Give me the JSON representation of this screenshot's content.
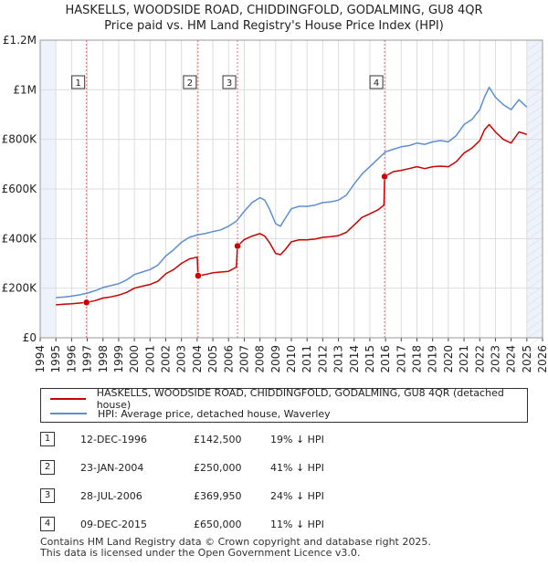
{
  "title": {
    "line1": "HASKELLS, WOODSIDE ROAD, CHIDDINGFOLD, GODALMING, GU8 4QR",
    "line2": "Price paid vs. HM Land Registry's House Price Index (HPI)"
  },
  "legend": {
    "property": "HASKELLS, WOODSIDE ROAD, CHIDDINGFOLD, GODALMING, GU8 4QR (detached house)",
    "hpi": "HPI: Average price, detached house, Waverley"
  },
  "colors": {
    "property": "#cc0000",
    "hpi": "#5b8fd4",
    "shade": "#eef2fa",
    "marker_line": "#e07070"
  },
  "sales": [
    {
      "num": "1",
      "date": "12-DEC-1996",
      "price": "£142,500",
      "pct": "19% ↓ HPI",
      "year": 1996.95,
      "value": 142500
    },
    {
      "num": "2",
      "date": "23-JAN-2004",
      "price": "£250,000",
      "pct": "41% ↓ HPI",
      "year": 2004.06,
      "value": 250000
    },
    {
      "num": "3",
      "date": "28-JUL-2006",
      "price": "£369,950",
      "pct": "24% ↓ HPI",
      "year": 2006.57,
      "value": 369950
    },
    {
      "num": "4",
      "date": "09-DEC-2015",
      "price": "£650,000",
      "pct": "11% ↓ HPI",
      "year": 2015.94,
      "value": 650000
    }
  ],
  "footer": {
    "line1": "Contains HM Land Registry data © Crown copyright and database right 2025.",
    "line2": "This data is licensed under the Open Government Licence v3.0."
  },
  "chart_data": {
    "type": "line",
    "title": "Price paid vs. HM Land Registry's House Price Index (HPI)",
    "xlim": [
      1994,
      2026
    ],
    "ylim": [
      0,
      1200000
    ],
    "x_ticks": [
      "1994",
      "1995",
      "1996",
      "1997",
      "1998",
      "1999",
      "2000",
      "2001",
      "2002",
      "2003",
      "2004",
      "2005",
      "2006",
      "2007",
      "2008",
      "2009",
      "2010",
      "2011",
      "2012",
      "2013",
      "2014",
      "2015",
      "2016",
      "2017",
      "2018",
      "2019",
      "2020",
      "2021",
      "2022",
      "2023",
      "2024",
      "2025",
      "2026"
    ],
    "y_ticks": [
      {
        "value": 0,
        "label": "£0"
      },
      {
        "value": 200000,
        "label": "£200K"
      },
      {
        "value": 400000,
        "label": "£400K"
      },
      {
        "value": 600000,
        "label": "£600K"
      },
      {
        "value": 800000,
        "label": "£800K"
      },
      {
        "value": 1000000,
        "label": "£1M"
      },
      {
        "value": 1200000,
        "label": "£1.2M"
      }
    ],
    "shaded_x_ranges": [
      [
        1994,
        1995
      ],
      [
        2025,
        2026
      ]
    ],
    "series": [
      {
        "name": "HPI: Average price, detached house, Waverley",
        "x": [
          1995.0,
          1995.5,
          1996.0,
          1996.5,
          1997.0,
          1997.5,
          1998.0,
          1998.5,
          1999.0,
          1999.5,
          2000.0,
          2000.5,
          2001.0,
          2001.5,
          2002.0,
          2002.5,
          2003.0,
          2003.5,
          2004.0,
          2004.5,
          2005.0,
          2005.5,
          2006.0,
          2006.5,
          2007.0,
          2007.5,
          2008.0,
          2008.3,
          2008.6,
          2009.0,
          2009.3,
          2009.6,
          2010.0,
          2010.5,
          2011.0,
          2011.5,
          2012.0,
          2012.5,
          2013.0,
          2013.5,
          2014.0,
          2014.5,
          2015.0,
          2015.5,
          2016.0,
          2016.5,
          2017.0,
          2017.5,
          2018.0,
          2018.5,
          2019.0,
          2019.5,
          2020.0,
          2020.5,
          2021.0,
          2021.5,
          2022.0,
          2022.3,
          2022.6,
          2023.0,
          2023.5,
          2024.0,
          2024.5,
          2025.0
        ],
        "y": [
          162000,
          164000,
          168000,
          173000,
          180000,
          190000,
          203000,
          210000,
          218000,
          233000,
          255000,
          265000,
          275000,
          293000,
          330000,
          355000,
          385000,
          405000,
          415000,
          420000,
          428000,
          435000,
          450000,
          470000,
          510000,
          545000,
          565000,
          555000,
          520000,
          460000,
          450000,
          480000,
          520000,
          530000,
          530000,
          535000,
          545000,
          548000,
          555000,
          575000,
          620000,
          660000,
          690000,
          720000,
          750000,
          760000,
          770000,
          775000,
          785000,
          780000,
          790000,
          795000,
          790000,
          815000,
          860000,
          880000,
          920000,
          970000,
          1010000,
          970000,
          940000,
          920000,
          960000,
          930000
        ]
      },
      {
        "name": "HASKELLS, WOODSIDE ROAD, CHIDDINGFOLD, GODALMING, GU8 4QR (detached house)",
        "x": [
          1995.0,
          1995.5,
          1996.0,
          1996.5,
          1996.95,
          1997.5,
          1998.0,
          1998.5,
          1999.0,
          1999.5,
          2000.0,
          2000.5,
          2001.0,
          2001.5,
          2002.0,
          2002.5,
          2003.0,
          2003.5,
          2004.0,
          2004.06,
          2004.5,
          2005.0,
          2005.5,
          2006.0,
          2006.5,
          2006.57,
          2007.0,
          2007.5,
          2008.0,
          2008.3,
          2008.6,
          2009.0,
          2009.3,
          2009.6,
          2010.0,
          2010.5,
          2011.0,
          2011.5,
          2012.0,
          2012.5,
          2013.0,
          2013.5,
          2014.0,
          2014.5,
          2015.0,
          2015.5,
          2015.9,
          2015.94,
          2016.5,
          2017.0,
          2017.5,
          2018.0,
          2018.5,
          2019.0,
          2019.5,
          2020.0,
          2020.5,
          2021.0,
          2021.5,
          2022.0,
          2022.3,
          2022.6,
          2023.0,
          2023.5,
          2024.0,
          2024.5,
          2025.0
        ],
        "y": [
          133000,
          135000,
          137000,
          140000,
          142500,
          150000,
          160000,
          165000,
          172000,
          183000,
          200000,
          208000,
          215000,
          228000,
          258000,
          275000,
          300000,
          318000,
          325000,
          250000,
          255000,
          262000,
          265000,
          268000,
          285000,
          369950,
          396000,
          410000,
          420000,
          410000,
          385000,
          340000,
          335000,
          355000,
          387000,
          395000,
          395000,
          398000,
          405000,
          408000,
          412000,
          425000,
          455000,
          485000,
          500000,
          515000,
          535000,
          650000,
          670000,
          675000,
          682000,
          690000,
          682000,
          690000,
          692000,
          690000,
          710000,
          745000,
          765000,
          795000,
          838000,
          860000,
          830000,
          800000,
          785000,
          830000,
          820000
        ]
      }
    ]
  }
}
